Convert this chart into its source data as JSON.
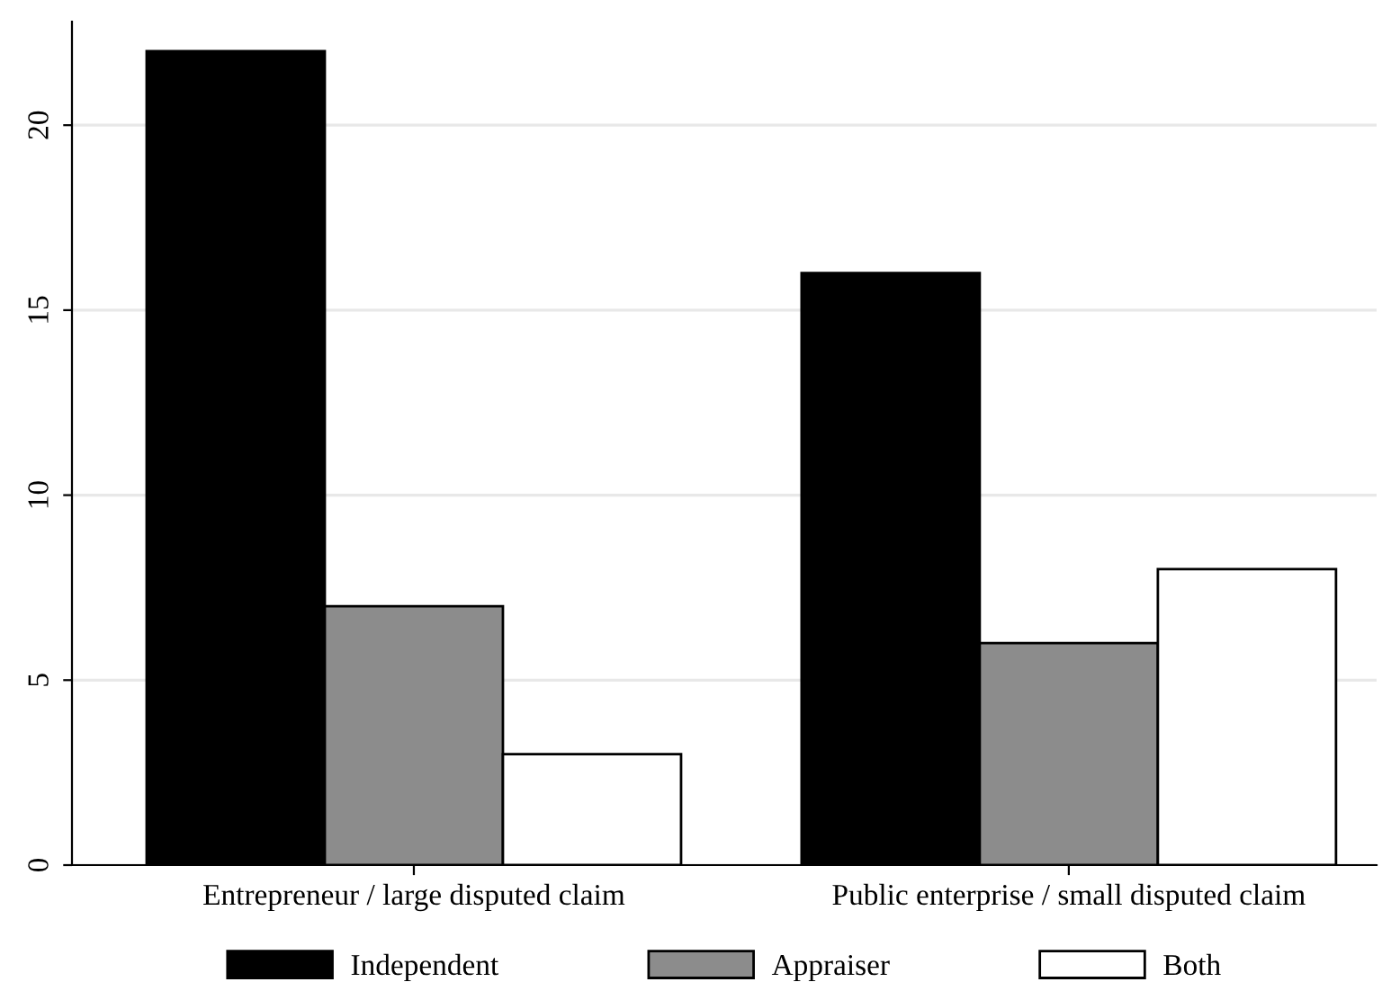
{
  "chart_data": {
    "type": "bar",
    "categories": [
      "Entrepreneur / large disputed claim",
      "Public enterprise / small disputed claim"
    ],
    "series": [
      {
        "name": "Independent",
        "color": "#000000",
        "values": [
          22,
          16
        ]
      },
      {
        "name": "Appraiser",
        "color": "#8c8c8c",
        "values": [
          7,
          6
        ]
      },
      {
        "name": "Both",
        "color": "#ffffff",
        "values": [
          3,
          8
        ]
      }
    ],
    "ylim": [
      0,
      22.8
    ],
    "yticks": [
      0,
      5,
      10,
      15,
      20
    ],
    "grid": "y",
    "legend": "bottom"
  }
}
